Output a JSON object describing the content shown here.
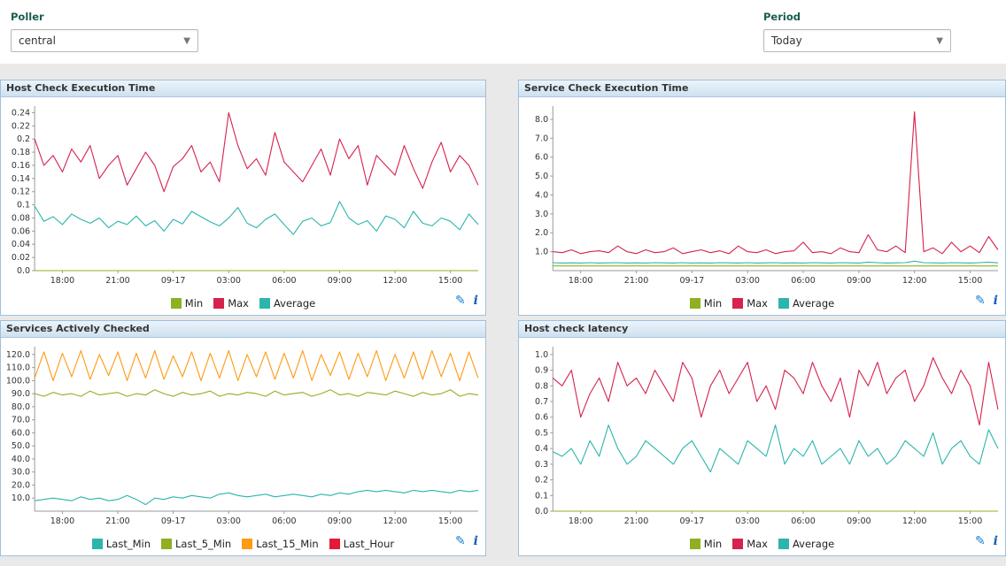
{
  "filters": {
    "poller": {
      "label": "Poller",
      "value": "central"
    },
    "period": {
      "label": "Period",
      "value": "Today"
    }
  },
  "icons": {
    "edit": "✎",
    "info": "i"
  },
  "chart_data": [
    {
      "type": "line",
      "title": "Host Check Execution Time",
      "xlabel": "",
      "ylabel": "",
      "ylim": [
        0,
        0.25
      ],
      "y_max": 0.25,
      "y_ticks": [
        0,
        0.02,
        0.04,
        0.06,
        0.08,
        0.1,
        0.12,
        0.14,
        0.16,
        0.18,
        0.2,
        0.22,
        0.24
      ],
      "y_tick_labels": [
        "0.0",
        "0.02",
        "0.04",
        "0.06",
        "0.08",
        "0.1",
        "0.12",
        "0.14",
        "0.16",
        "0.18",
        "0.2",
        "0.22",
        "0.24"
      ],
      "x_ticks": [
        {
          "pos": 0.0625,
          "label": "18:00"
        },
        {
          "pos": 0.1875,
          "label": "21:00"
        },
        {
          "pos": 0.3125,
          "label": "09-17"
        },
        {
          "pos": 0.4375,
          "label": "03:00"
        },
        {
          "pos": 0.5625,
          "label": "06:00"
        },
        {
          "pos": 0.6875,
          "label": "09:00"
        },
        {
          "pos": 0.8125,
          "label": "12:00"
        },
        {
          "pos": 0.9375,
          "label": "15:00"
        }
      ],
      "series": [
        {
          "name": "Min",
          "color": "#8eb021",
          "values": [
            0,
            0,
            0,
            0,
            0,
            0,
            0,
            0,
            0,
            0,
            0,
            0,
            0,
            0,
            0,
            0,
            0,
            0,
            0,
            0,
            0,
            0,
            0,
            0,
            0,
            0,
            0,
            0,
            0,
            0,
            0,
            0,
            0,
            0,
            0,
            0,
            0,
            0,
            0,
            0,
            0,
            0,
            0,
            0,
            0,
            0,
            0,
            0,
            0
          ]
        },
        {
          "name": "Max",
          "color": "#d6224c",
          "values": [
            0.2,
            0.16,
            0.175,
            0.15,
            0.185,
            0.165,
            0.19,
            0.14,
            0.16,
            0.175,
            0.13,
            0.155,
            0.18,
            0.16,
            0.12,
            0.158,
            0.17,
            0.19,
            0.15,
            0.165,
            0.135,
            0.24,
            0.19,
            0.155,
            0.17,
            0.145,
            0.21,
            0.165,
            0.15,
            0.135,
            0.16,
            0.185,
            0.145,
            0.2,
            0.17,
            0.19,
            0.13,
            0.175,
            0.16,
            0.145,
            0.19,
            0.155,
            0.125,
            0.165,
            0.195,
            0.15,
            0.175,
            0.16,
            0.13
          ]
        },
        {
          "name": "Average",
          "color": "#2cb5ac",
          "values": [
            0.098,
            0.075,
            0.082,
            0.07,
            0.086,
            0.078,
            0.072,
            0.08,
            0.065,
            0.075,
            0.07,
            0.083,
            0.068,
            0.076,
            0.06,
            0.078,
            0.071,
            0.09,
            0.082,
            0.074,
            0.068,
            0.08,
            0.096,
            0.072,
            0.065,
            0.078,
            0.086,
            0.07,
            0.055,
            0.075,
            0.08,
            0.068,
            0.073,
            0.105,
            0.08,
            0.07,
            0.076,
            0.06,
            0.083,
            0.078,
            0.065,
            0.09,
            0.072,
            0.068,
            0.08,
            0.075,
            0.062,
            0.086,
            0.07
          ]
        }
      ]
    },
    {
      "type": "line",
      "title": "Service Check Execution Time",
      "xlabel": "",
      "ylabel": "",
      "ylim": [
        0,
        8.7
      ],
      "y_max": 8.7,
      "y_ticks": [
        1,
        2,
        3,
        4,
        5,
        6,
        7,
        8
      ],
      "y_tick_labels": [
        "1.0",
        "2.0",
        "3.0",
        "4.0",
        "5.0",
        "6.0",
        "7.0",
        "8.0"
      ],
      "x_ticks": [
        {
          "pos": 0.0625,
          "label": "18:00"
        },
        {
          "pos": 0.1875,
          "label": "21:00"
        },
        {
          "pos": 0.3125,
          "label": "09-17"
        },
        {
          "pos": 0.4375,
          "label": "03:00"
        },
        {
          "pos": 0.5625,
          "label": "06:00"
        },
        {
          "pos": 0.6875,
          "label": "09:00"
        },
        {
          "pos": 0.8125,
          "label": "12:00"
        },
        {
          "pos": 0.9375,
          "label": "15:00"
        }
      ],
      "series": [
        {
          "name": "Min",
          "color": "#8eb021",
          "values": [
            0.25,
            0.25,
            0.25,
            0.25,
            0.25,
            0.25,
            0.25,
            0.25,
            0.25,
            0.25,
            0.25,
            0.25,
            0.25,
            0.25,
            0.25,
            0.25,
            0.25,
            0.25,
            0.25,
            0.25,
            0.25,
            0.25,
            0.25,
            0.25,
            0.25,
            0.25,
            0.25,
            0.25,
            0.25,
            0.25,
            0.25,
            0.25,
            0.25,
            0.25,
            0.25,
            0.25,
            0.25,
            0.25,
            0.25,
            0.25,
            0.25,
            0.25,
            0.25,
            0.25,
            0.25,
            0.25,
            0.25,
            0.25,
            0.25
          ]
        },
        {
          "name": "Max",
          "color": "#d6224c",
          "values": [
            1.0,
            0.95,
            1.1,
            0.9,
            1.0,
            1.05,
            0.95,
            1.3,
            1.0,
            0.9,
            1.1,
            0.95,
            1.0,
            1.2,
            0.9,
            1.0,
            1.1,
            0.95,
            1.05,
            0.9,
            1.3,
            1.0,
            0.95,
            1.1,
            0.9,
            1.0,
            1.05,
            1.5,
            0.95,
            1.0,
            0.9,
            1.2,
            1.0,
            0.95,
            1.9,
            1.1,
            1.0,
            1.3,
            0.95,
            8.4,
            1.0,
            1.2,
            0.9,
            1.5,
            1.0,
            1.3,
            0.95,
            1.8,
            1.1
          ]
        },
        {
          "name": "Average",
          "color": "#2cb5ac",
          "values": [
            0.42,
            0.4,
            0.41,
            0.4,
            0.42,
            0.4,
            0.41,
            0.42,
            0.4,
            0.41,
            0.4,
            0.42,
            0.41,
            0.4,
            0.42,
            0.4,
            0.41,
            0.4,
            0.42,
            0.41,
            0.4,
            0.42,
            0.4,
            0.41,
            0.42,
            0.4,
            0.41,
            0.4,
            0.42,
            0.41,
            0.4,
            0.42,
            0.41,
            0.4,
            0.45,
            0.42,
            0.4,
            0.41,
            0.42,
            0.5,
            0.42,
            0.41,
            0.4,
            0.42,
            0.41,
            0.4,
            0.42,
            0.45,
            0.41
          ]
        }
      ]
    },
    {
      "type": "line",
      "title": "Services Actively Checked",
      "xlabel": "",
      "ylabel": "",
      "ylim": [
        0,
        126
      ],
      "y_max": 126,
      "y_ticks": [
        10,
        20,
        30,
        40,
        50,
        60,
        70,
        80,
        90,
        100,
        110,
        120
      ],
      "y_tick_labels": [
        "10.0",
        "20.0",
        "30.0",
        "40.0",
        "50.0",
        "60.0",
        "70.0",
        "80.0",
        "90.0",
        "100.0",
        "110.0",
        "120.0"
      ],
      "x_ticks": [
        {
          "pos": 0.0625,
          "label": "18:00"
        },
        {
          "pos": 0.1875,
          "label": "21:00"
        },
        {
          "pos": 0.3125,
          "label": "09-17"
        },
        {
          "pos": 0.4375,
          "label": "03:00"
        },
        {
          "pos": 0.5625,
          "label": "06:00"
        },
        {
          "pos": 0.6875,
          "label": "09:00"
        },
        {
          "pos": 0.8125,
          "label": "12:00"
        },
        {
          "pos": 0.9375,
          "label": "15:00"
        }
      ],
      "series": [
        {
          "name": "Last_Min",
          "color": "#2cb5ac",
          "values": [
            8,
            9,
            10,
            9,
            8,
            11,
            9,
            10,
            8,
            9,
            12,
            9,
            5,
            10,
            9,
            11,
            10,
            12,
            11,
            10,
            13,
            14,
            12,
            11,
            12,
            13,
            11,
            12,
            13,
            12,
            11,
            13,
            12,
            14,
            13,
            15,
            16,
            15,
            16,
            15,
            14,
            16,
            15,
            16,
            15,
            14,
            16,
            15,
            16
          ]
        },
        {
          "name": "Last_5_Min",
          "color": "#8eb021",
          "values": [
            90,
            88,
            91,
            89,
            90,
            88,
            92,
            89,
            90,
            91,
            88,
            90,
            89,
            93,
            90,
            88,
            91,
            89,
            90,
            92,
            88,
            90,
            89,
            91,
            90,
            88,
            92,
            89,
            90,
            91,
            88,
            90,
            93,
            89,
            90,
            88,
            91,
            90,
            89,
            92,
            90,
            88,
            91,
            89,
            90,
            93,
            88,
            90,
            89
          ]
        },
        {
          "name": "Last_15_Min",
          "color": "#ff9a13",
          "values": [
            102,
            122,
            100,
            121,
            103,
            123,
            101,
            120,
            104,
            122,
            100,
            121,
            102,
            123,
            101,
            119,
            103,
            122,
            100,
            121,
            102,
            123,
            100,
            120,
            103,
            122,
            101,
            121,
            102,
            123,
            100,
            120,
            104,
            122,
            101,
            121,
            103,
            123,
            100,
            120,
            102,
            122,
            101,
            123,
            103,
            121,
            100,
            122,
            102
          ]
        },
        {
          "name": "Last_Hour",
          "color": "#e31937",
          "values": []
        }
      ]
    },
    {
      "type": "line",
      "title": "Host check latency",
      "xlabel": "",
      "ylabel": "",
      "ylim": [
        0,
        1.05
      ],
      "y_max": 1.05,
      "y_ticks": [
        0,
        0.1,
        0.2,
        0.3,
        0.4,
        0.5,
        0.6,
        0.7,
        0.8,
        0.9,
        1.0
      ],
      "y_tick_labels": [
        "0.0",
        "0.1",
        "0.2",
        "0.3",
        "0.4",
        "0.5",
        "0.6",
        "0.7",
        "0.8",
        "0.9",
        "1.0"
      ],
      "x_ticks": [
        {
          "pos": 0.0625,
          "label": "18:00"
        },
        {
          "pos": 0.1875,
          "label": "21:00"
        },
        {
          "pos": 0.3125,
          "label": "09-17"
        },
        {
          "pos": 0.4375,
          "label": "03:00"
        },
        {
          "pos": 0.5625,
          "label": "06:00"
        },
        {
          "pos": 0.6875,
          "label": "09:00"
        },
        {
          "pos": 0.8125,
          "label": "12:00"
        },
        {
          "pos": 0.9375,
          "label": "15:00"
        }
      ],
      "series": [
        {
          "name": "Min",
          "color": "#8eb021",
          "values": [
            0,
            0,
            0,
            0,
            0,
            0,
            0,
            0,
            0,
            0,
            0,
            0,
            0,
            0,
            0,
            0,
            0,
            0,
            0,
            0,
            0,
            0,
            0,
            0,
            0,
            0,
            0,
            0,
            0,
            0,
            0,
            0,
            0,
            0,
            0,
            0,
            0,
            0,
            0,
            0,
            0,
            0,
            0,
            0,
            0,
            0,
            0,
            0,
            0
          ]
        },
        {
          "name": "Max",
          "color": "#d6224c",
          "values": [
            0.85,
            0.8,
            0.9,
            0.6,
            0.75,
            0.85,
            0.7,
            0.95,
            0.8,
            0.85,
            0.75,
            0.9,
            0.8,
            0.7,
            0.95,
            0.85,
            0.6,
            0.8,
            0.9,
            0.75,
            0.85,
            0.95,
            0.7,
            0.8,
            0.65,
            0.9,
            0.85,
            0.75,
            0.95,
            0.8,
            0.7,
            0.85,
            0.6,
            0.9,
            0.8,
            0.95,
            0.75,
            0.85,
            0.9,
            0.7,
            0.8,
            0.98,
            0.85,
            0.75,
            0.9,
            0.8,
            0.55,
            0.95,
            0.65
          ]
        },
        {
          "name": "Average",
          "color": "#2cb5ac",
          "values": [
            0.38,
            0.35,
            0.4,
            0.3,
            0.45,
            0.35,
            0.55,
            0.4,
            0.3,
            0.35,
            0.45,
            0.4,
            0.35,
            0.3,
            0.4,
            0.45,
            0.35,
            0.25,
            0.4,
            0.35,
            0.3,
            0.45,
            0.4,
            0.35,
            0.55,
            0.3,
            0.4,
            0.35,
            0.45,
            0.3,
            0.35,
            0.4,
            0.3,
            0.45,
            0.35,
            0.4,
            0.3,
            0.35,
            0.45,
            0.4,
            0.35,
            0.5,
            0.3,
            0.4,
            0.45,
            0.35,
            0.3,
            0.52,
            0.4
          ]
        }
      ]
    }
  ]
}
